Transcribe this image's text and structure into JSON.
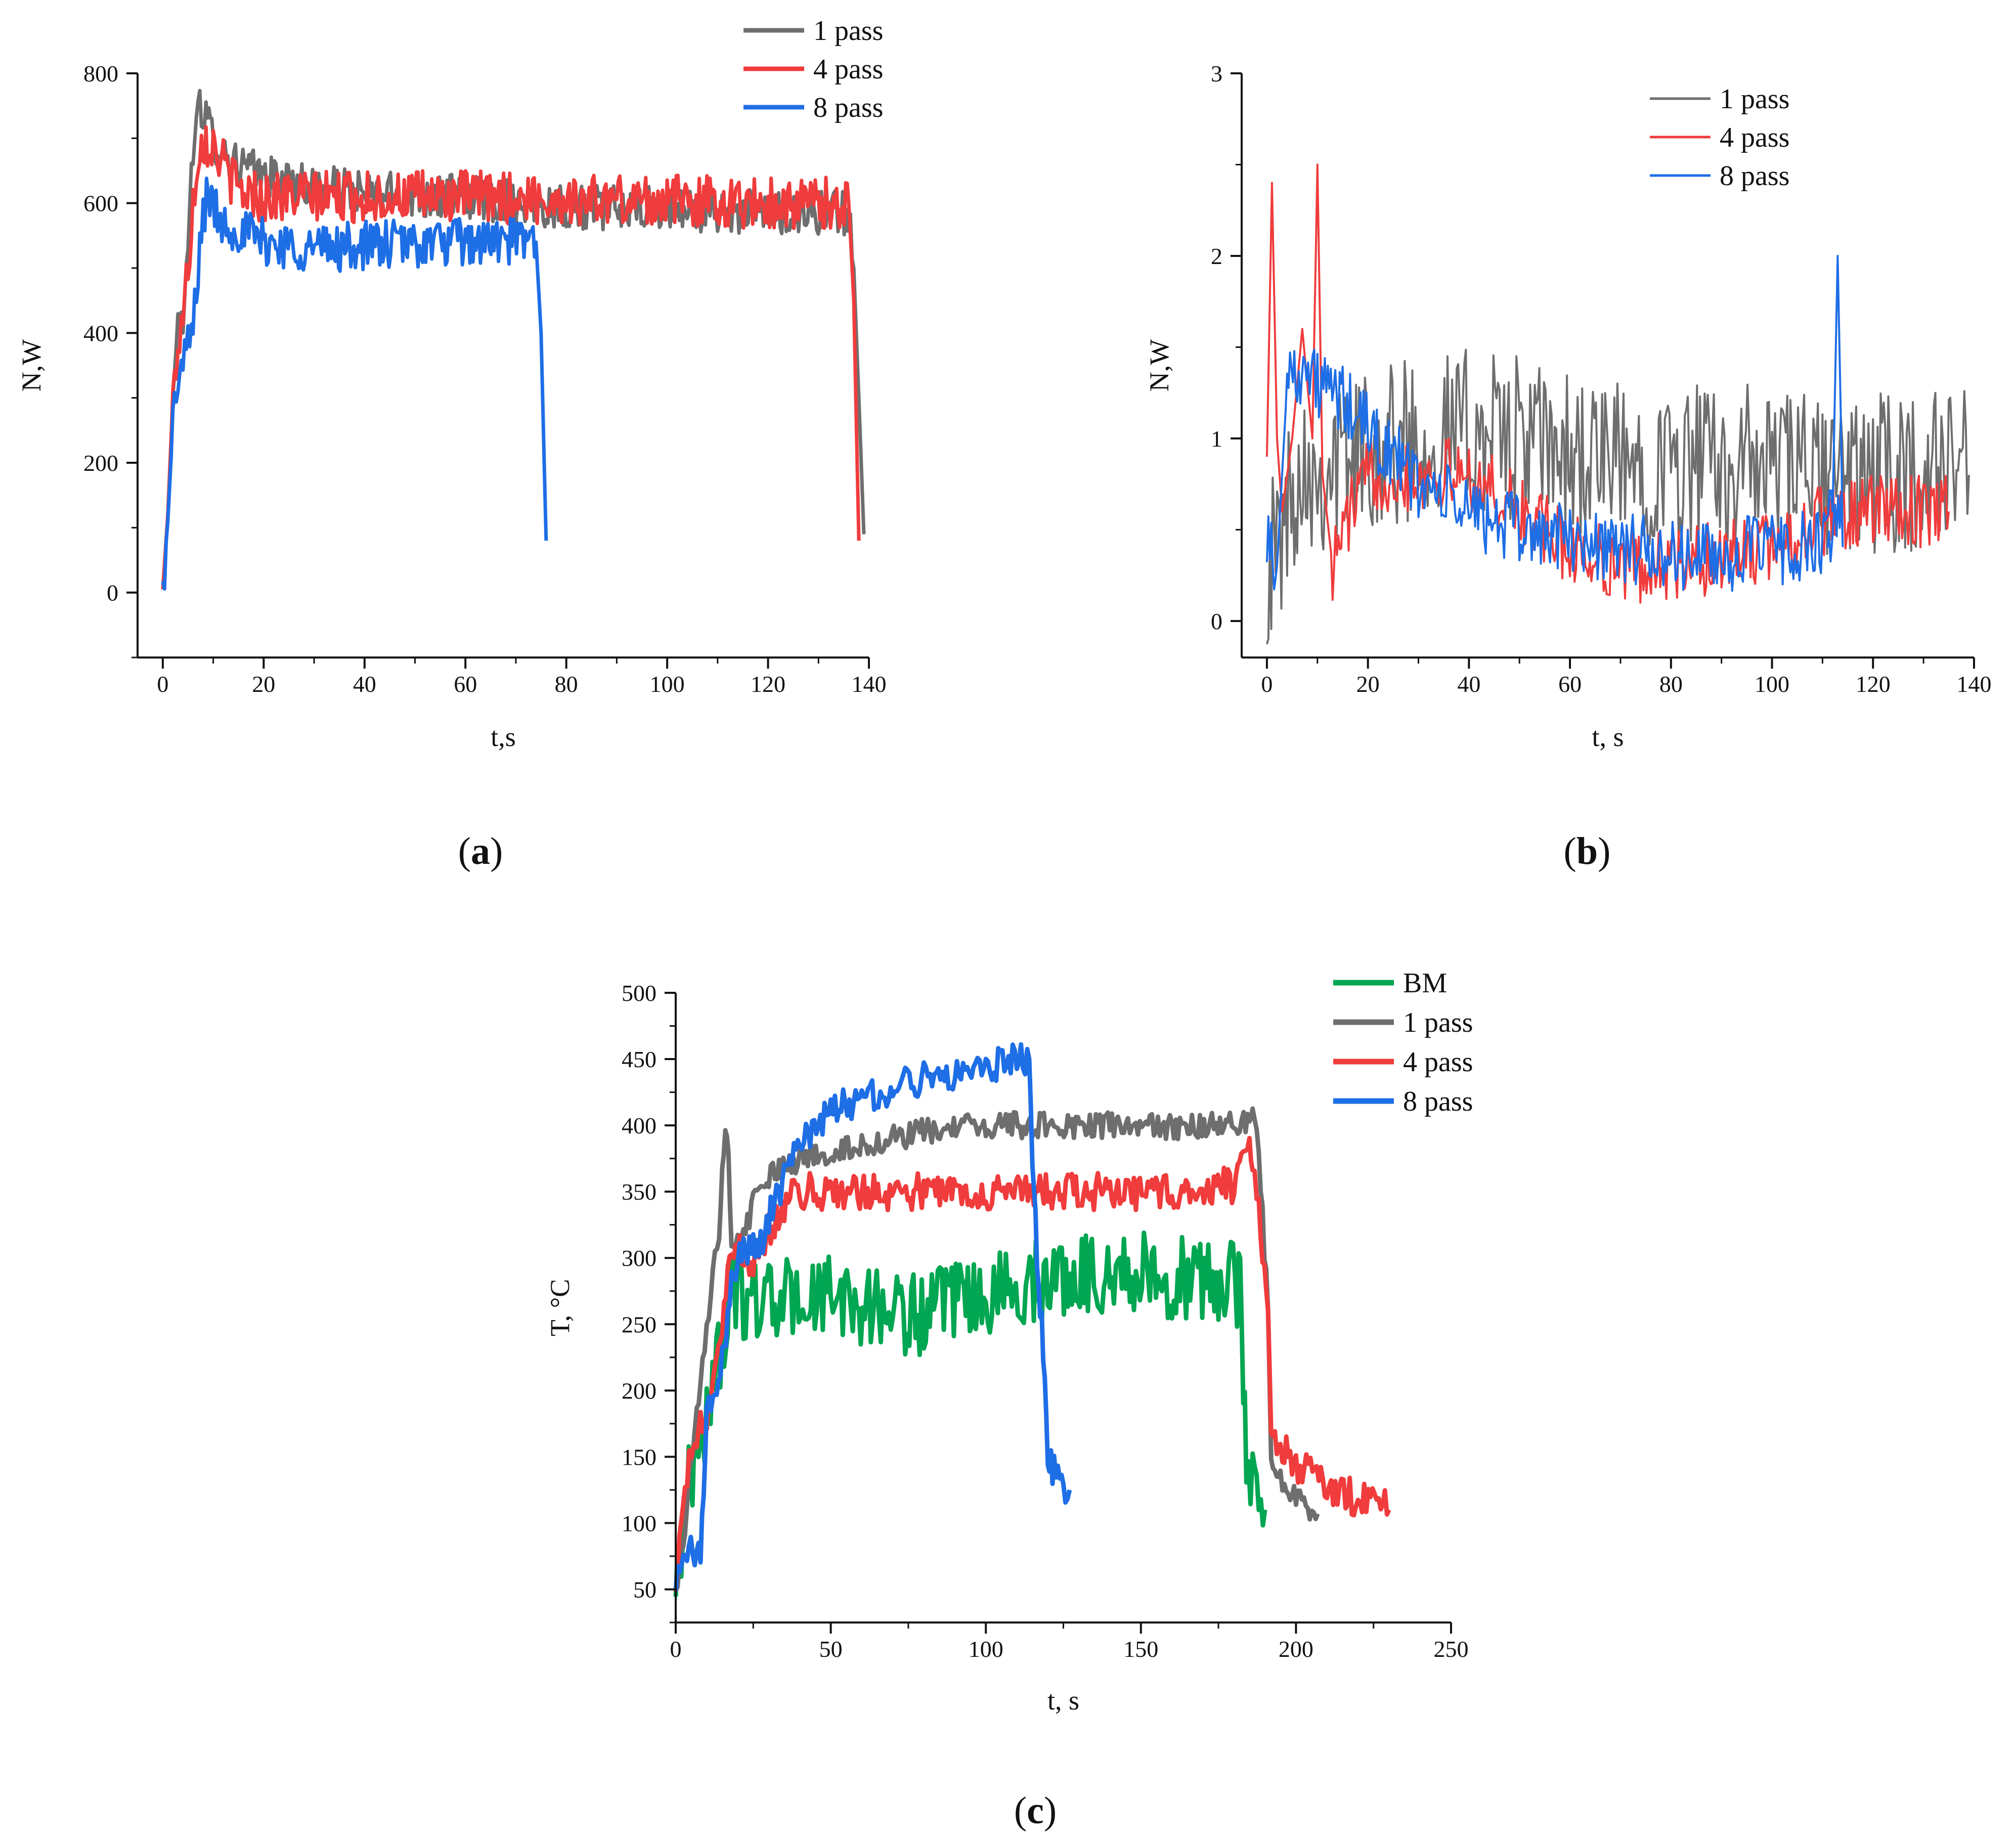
{
  "panels": [
    {
      "id": "a",
      "caption": {
        "open": "(",
        "letter": "a",
        "close": ")"
      },
      "chart_data": {
        "type": "line",
        "title": "",
        "xlabel": "t,s",
        "ylabel": "N,W",
        "xlim": [
          -5,
          140
        ],
        "ylim": [
          -100,
          800
        ],
        "xticks": [
          0,
          20,
          40,
          60,
          80,
          100,
          120,
          140
        ],
        "yticks": [
          0,
          200,
          400,
          600,
          800
        ],
        "grid": false,
        "legend_position": "top-right",
        "series": [
          {
            "name": "1 pass",
            "color": "#6e6e6e",
            "x": [
              0,
              1,
              2,
              3,
              4,
              5,
              6,
              7,
              8,
              10,
              12,
              15,
              20,
              30,
              40,
              60,
              80,
              100,
              120,
              136,
              137,
              138,
              139
            ],
            "y": [
              5,
              120,
              300,
              420,
              400,
              560,
              660,
              770,
              740,
              700,
              680,
              660,
              640,
              625,
              615,
              610,
              595,
              590,
              585,
              585,
              500,
              300,
              90
            ],
            "noise": 35
          },
          {
            "name": "4 pass",
            "color": "#f03c3c",
            "x": [
              0,
              1,
              2,
              3,
              4,
              5,
              6,
              7,
              8,
              10,
              12,
              15,
              20,
              30,
              40,
              60,
              80,
              100,
              120,
              136,
              137,
              138
            ],
            "y": [
              5,
              120,
              300,
              380,
              430,
              500,
              600,
              680,
              700,
              690,
              660,
              620,
              610,
              610,
              610,
              610,
              605,
              605,
              600,
              600,
              450,
              80
            ],
            "noise": 40
          },
          {
            "name": "8 pass",
            "color": "#1e6ee6",
            "x": [
              0,
              1,
              2,
              3,
              4,
              5,
              6,
              7,
              8,
              9,
              10,
              12,
              15,
              20,
              30,
              40,
              60,
              74,
              75,
              76
            ],
            "y": [
              5,
              110,
              260,
              330,
              350,
              380,
              410,
              500,
              580,
              620,
              590,
              570,
              560,
              540,
              530,
              535,
              540,
              540,
              400,
              80
            ],
            "noise": 38
          }
        ]
      }
    },
    {
      "id": "b",
      "caption": {
        "open": "(",
        "letter": "b",
        "close": ")"
      },
      "chart_data": {
        "type": "line",
        "title": "",
        "xlabel": "t, s",
        "ylabel": "N,W",
        "xlim": [
          -5,
          140
        ],
        "ylim": [
          -0.2,
          3
        ],
        "xticks": [
          0,
          20,
          40,
          60,
          80,
          100,
          120,
          140
        ],
        "yticks": [
          0,
          1,
          2,
          3
        ],
        "grid": false,
        "legend_position": "top-right",
        "series": [
          {
            "name": "1 pass",
            "color": "#6e6e6e",
            "x": [
              0,
              2,
              4,
              6,
              8,
              10,
              15,
              20,
              30,
              40,
              50,
              60,
              70,
              80,
              90,
              100,
              110,
              120,
              130,
              135,
              139
            ],
            "y": [
              0.3,
              0.4,
              0.6,
              0.8,
              0.9,
              0.8,
              0.9,
              0.95,
              1.0,
              1.05,
              1.0,
              0.9,
              0.85,
              0.85,
              0.85,
              0.85,
              0.8,
              0.8,
              0.8,
              0.9,
              0.8
            ],
            "noise": 0.45
          },
          {
            "name": "4 pass",
            "color": "#f03c3c",
            "x": [
              0,
              1,
              2,
              3,
              5,
              7,
              9,
              10,
              11,
              13,
              15,
              20,
              30,
              40,
              50,
              60,
              70,
              80,
              90,
              100,
              110,
              120,
              130,
              135
            ],
            "y": [
              0.9,
              2.4,
              1.0,
              0.6,
              1.0,
              1.6,
              1.0,
              2.5,
              0.8,
              0.3,
              0.5,
              0.8,
              0.8,
              0.8,
              0.6,
              0.4,
              0.3,
              0.3,
              0.35,
              0.4,
              0.55,
              0.6,
              0.6,
              0.6
            ],
            "noise": 0.2
          },
          {
            "name": "8 pass",
            "color": "#1e6ee6",
            "x": [
              0,
              2,
              4,
              6,
              10,
              15,
              20,
              25,
              30,
              40,
              50,
              60,
              70,
              80,
              90,
              100,
              110,
              112,
              113,
              114,
              111
            ],
            "y": [
              0.5,
              0.3,
              1.3,
              1.4,
              1.3,
              1.2,
              1.05,
              0.9,
              0.75,
              0.6,
              0.5,
              0.45,
              0.4,
              0.35,
              0.35,
              0.4,
              0.4,
              0.6,
              2.0,
              0.6,
              0.4
            ],
            "noise": 0.2
          }
        ]
      }
    },
    {
      "id": "c",
      "caption": {
        "open": "(",
        "letter": "c",
        "close": ")"
      },
      "chart_data": {
        "type": "line",
        "title": "",
        "xlabel": "t, s",
        "ylabel": "T, °C",
        "xlim": [
          0,
          250
        ],
        "ylim": [
          25,
          500
        ],
        "xticks": [
          0,
          50,
          100,
          150,
          200,
          250
        ],
        "yticks": [
          50,
          100,
          150,
          200,
          250,
          300,
          350,
          400,
          450,
          500
        ],
        "grid": false,
        "legend_position": "top-right",
        "series": [
          {
            "name": "BM",
            "color": "#00a651",
            "x": [
              0,
              3,
              6,
              10,
              15,
              18,
              20,
              25,
              30,
              50,
              70,
              80,
              100,
              120,
              140,
              160,
              175,
              181,
              182,
              183,
              184,
              186,
              190
            ],
            "y": [
              50,
              110,
              150,
              180,
              240,
              275,
              270,
              270,
              268,
              270,
              260,
              258,
              270,
              285,
              290,
              285,
              280,
              280,
              300,
              200,
              150,
              130,
              110
            ],
            "noise": 32
          },
          {
            "name": "1 pass",
            "color": "#6e6e6e",
            "x": [
              0,
              3,
              5,
              8,
              10,
              12,
              14,
              15,
              16,
              17,
              18,
              20,
              25,
              30,
              40,
              60,
              80,
              100,
              120,
              140,
              160,
              180,
              185,
              186,
              188,
              191,
              192,
              195,
              200,
              207
            ],
            "y": [
              50,
              100,
              150,
              200,
              250,
              290,
              310,
              360,
              400,
              380,
              300,
              310,
              340,
              360,
              375,
              385,
              395,
              400,
              400,
              400,
              398,
              400,
              405,
              420,
              380,
              260,
              150,
              135,
              120,
              107
            ],
            "noise": 10
          },
          {
            "name": "4 pass",
            "color": "#f03c3c",
            "x": [
              0,
              3,
              5,
              8,
              10,
              12,
              15,
              18,
              20,
              22,
              25,
              28,
              30,
              35,
              40,
              60,
              80,
              100,
              120,
              140,
              160,
              180,
              183,
              185,
              186,
              188,
              191,
              192,
              195,
              200,
              210,
              220,
              230
            ],
            "y": [
              50,
              120,
              160,
              170,
              180,
              210,
              250,
              300,
              310,
              300,
              300,
              310,
              320,
              340,
              350,
              350,
              350,
              350,
              350,
              350,
              350,
              355,
              370,
              390,
              380,
              340,
              260,
              170,
              160,
              145,
              130,
              118,
              110
            ],
            "noise": 14
          },
          {
            "name": "8 pass",
            "color": "#1e6ee6",
            "x": [
              0,
              2,
              3,
              8,
              9,
              10,
              12,
              15,
              18,
              20,
              25,
              28,
              30,
              35,
              40,
              50,
              60,
              70,
              80,
              90,
              100,
              110,
              114,
              115,
              116,
              117,
              118,
              119,
              120,
              121,
              122,
              125,
              127
            ],
            "y": [
              50,
              78,
              78,
              78,
              120,
              180,
              200,
              220,
              280,
              300,
              310,
              310,
              330,
              360,
              385,
              410,
              420,
              428,
              435,
              440,
              445,
              450,
              450,
              380,
              330,
              280,
              250,
              210,
              150,
              145,
              140,
              130,
              125
            ],
            "noise": 13
          }
        ]
      }
    }
  ]
}
